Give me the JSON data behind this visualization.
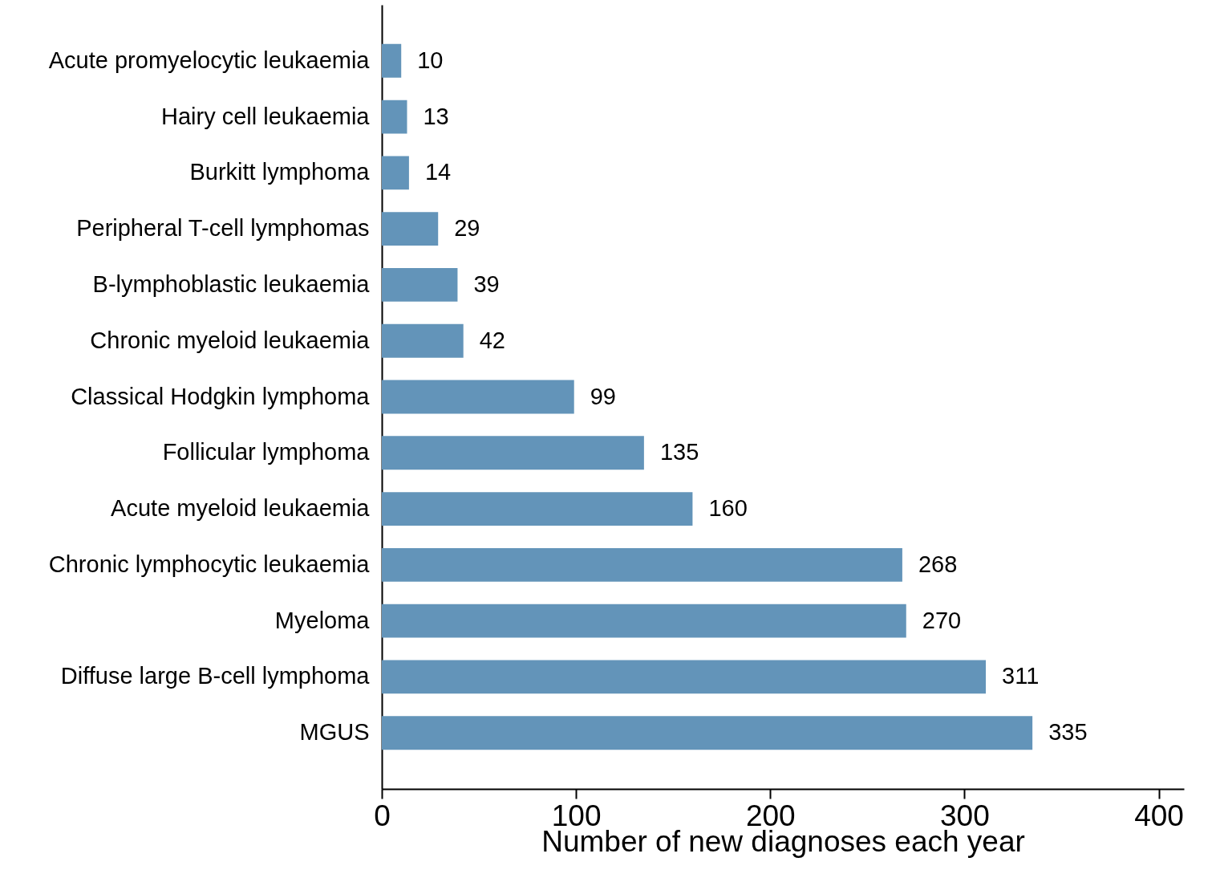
{
  "chart_data": {
    "type": "bar",
    "orientation": "horizontal",
    "xlabel": "Number of new diagnoses each year",
    "categories": [
      "Acute promyelocytic leukaemia",
      "Hairy cell leukaemia",
      "Burkitt lymphoma",
      "Peripheral T-cell lymphomas",
      "B-lymphoblastic leukaemia",
      "Chronic myeloid leukaemia",
      "Classical Hodgkin lymphoma",
      "Follicular lymphoma",
      "Acute myeloid leukaemia",
      "Chronic lymphocytic leukaemia",
      "Myeloma",
      "Diffuse large B-cell lymphoma",
      "MGUS"
    ],
    "values": [
      10,
      13,
      14,
      29,
      39,
      42,
      99,
      135,
      160,
      268,
      270,
      311,
      335
    ],
    "color": "#6394b9",
    "xlim": [
      0,
      413
    ],
    "xticks": [
      0,
      100,
      200,
      300,
      400
    ],
    "data_labels": true,
    "grid": false
  }
}
